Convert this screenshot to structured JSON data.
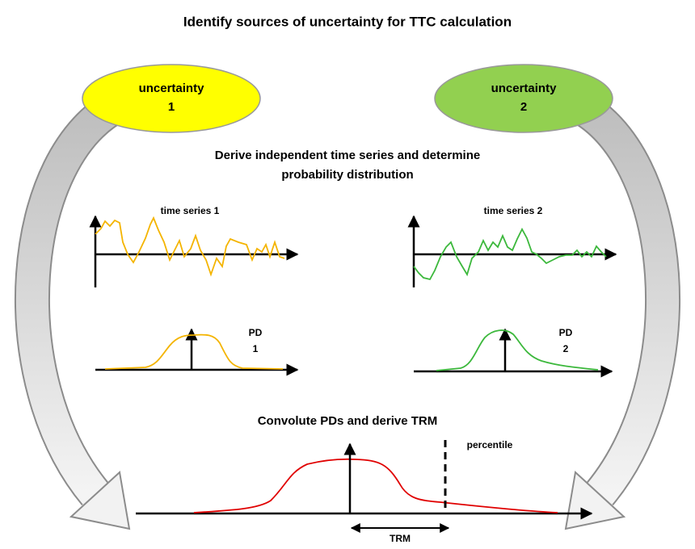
{
  "title": "Identify sources of uncertainty for TTC calculation",
  "uncertainties": [
    {
      "lines": [
        "uncertainty",
        "1"
      ]
    },
    {
      "lines": [
        "uncertainty",
        "2"
      ]
    }
  ],
  "step2": {
    "lines": [
      "Derive independent time series and determine",
      "probability distribution"
    ]
  },
  "time_series": [
    "time series 1",
    "time series 2"
  ],
  "pds": [
    {
      "lines": [
        "PD",
        "1"
      ]
    },
    {
      "lines": [
        "PD",
        "2"
      ]
    }
  ],
  "step3": "Convolute PDs and derive TRM",
  "percentile": "percentile",
  "trm": "TRM"
}
